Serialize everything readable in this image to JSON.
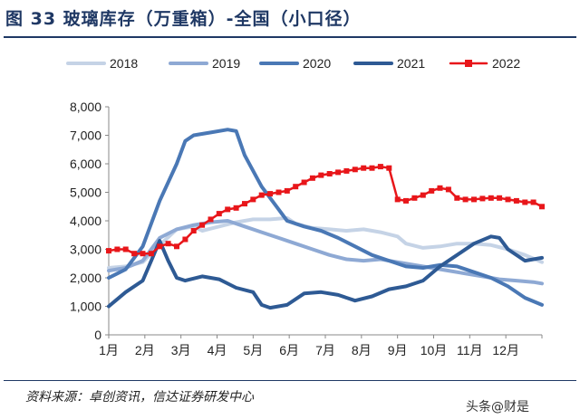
{
  "title": "图 33 玻璃库存（万重箱）-全国（小口径）",
  "source": "资料来源：卓创资讯，信达证券研发中心",
  "watermark": "头条@财是",
  "chart_data": {
    "type": "line",
    "ylim": [
      0,
      8000
    ],
    "y_ticks": [
      "0",
      "1,000",
      "2,000",
      "3,000",
      "4,000",
      "5,000",
      "6,000",
      "7,000",
      "8,000"
    ],
    "x_ticks": [
      "1月",
      "2月",
      "3月",
      "4月",
      "5月",
      "6月",
      "7月",
      "8月",
      "9月",
      "10月",
      "11月",
      "12月"
    ],
    "x_unit": "week",
    "x_range": [
      1,
      52
    ],
    "grid": false,
    "legend_position": "top",
    "series": [
      {
        "name": "2018",
        "color": "#c5d3e6",
        "marker": false,
        "points": [
          [
            1,
            2350
          ],
          [
            3,
            2400
          ],
          [
            5,
            2550
          ],
          [
            7,
            3150
          ],
          [
            9,
            3700
          ],
          [
            11,
            3800
          ],
          [
            12,
            3650
          ],
          [
            14,
            3800
          ],
          [
            16,
            3950
          ],
          [
            18,
            4050
          ],
          [
            20,
            4050
          ],
          [
            22,
            4100
          ],
          [
            23,
            3900
          ],
          [
            25,
            3750
          ],
          [
            27,
            3700
          ],
          [
            29,
            3650
          ],
          [
            31,
            3700
          ],
          [
            33,
            3600
          ],
          [
            35,
            3450
          ],
          [
            36,
            3200
          ],
          [
            38,
            3050
          ],
          [
            40,
            3100
          ],
          [
            42,
            3200
          ],
          [
            44,
            3200
          ],
          [
            46,
            3150
          ],
          [
            48,
            3000
          ],
          [
            50,
            2800
          ],
          [
            52,
            2550
          ]
        ]
      },
      {
        "name": "2019",
        "color": "#8ea9d4",
        "marker": false,
        "points": [
          [
            1,
            2250
          ],
          [
            3,
            2350
          ],
          [
            5,
            2600
          ],
          [
            7,
            3400
          ],
          [
            9,
            3700
          ],
          [
            11,
            3850
          ],
          [
            13,
            3950
          ],
          [
            15,
            4000
          ],
          [
            17,
            3800
          ],
          [
            19,
            3600
          ],
          [
            21,
            3400
          ],
          [
            23,
            3200
          ],
          [
            25,
            3000
          ],
          [
            27,
            2800
          ],
          [
            29,
            2650
          ],
          [
            31,
            2600
          ],
          [
            33,
            2650
          ],
          [
            35,
            2550
          ],
          [
            37,
            2450
          ],
          [
            39,
            2350
          ],
          [
            41,
            2250
          ],
          [
            43,
            2150
          ],
          [
            45,
            2050
          ],
          [
            47,
            1950
          ],
          [
            49,
            1900
          ],
          [
            51,
            1850
          ],
          [
            52,
            1800
          ]
        ]
      },
      {
        "name": "2020",
        "color": "#4a78b5",
        "marker": false,
        "points": [
          [
            1,
            2000
          ],
          [
            3,
            2300
          ],
          [
            5,
            3100
          ],
          [
            7,
            4700
          ],
          [
            9,
            6000
          ],
          [
            10,
            6800
          ],
          [
            11,
            7000
          ],
          [
            13,
            7100
          ],
          [
            15,
            7200
          ],
          [
            16,
            7150
          ],
          [
            17,
            6300
          ],
          [
            19,
            5200
          ],
          [
            21,
            4400
          ],
          [
            22,
            4000
          ],
          [
            24,
            3800
          ],
          [
            26,
            3650
          ],
          [
            28,
            3400
          ],
          [
            30,
            3100
          ],
          [
            32,
            2800
          ],
          [
            34,
            2600
          ],
          [
            36,
            2400
          ],
          [
            38,
            2350
          ],
          [
            40,
            2450
          ],
          [
            42,
            2400
          ],
          [
            44,
            2200
          ],
          [
            46,
            2000
          ],
          [
            48,
            1700
          ],
          [
            50,
            1300
          ],
          [
            52,
            1050
          ]
        ]
      },
      {
        "name": "2021",
        "color": "#2e5a94",
        "marker": false,
        "points": [
          [
            1,
            1000
          ],
          [
            3,
            1500
          ],
          [
            5,
            1900
          ],
          [
            6,
            2600
          ],
          [
            7,
            3300
          ],
          [
            8,
            2600
          ],
          [
            9,
            2000
          ],
          [
            10,
            1900
          ],
          [
            12,
            2050
          ],
          [
            14,
            1950
          ],
          [
            16,
            1650
          ],
          [
            18,
            1500
          ],
          [
            19,
            1050
          ],
          [
            20,
            950
          ],
          [
            22,
            1050
          ],
          [
            24,
            1450
          ],
          [
            26,
            1500
          ],
          [
            28,
            1400
          ],
          [
            30,
            1200
          ],
          [
            32,
            1350
          ],
          [
            34,
            1600
          ],
          [
            36,
            1700
          ],
          [
            38,
            1900
          ],
          [
            40,
            2400
          ],
          [
            42,
            2800
          ],
          [
            44,
            3200
          ],
          [
            46,
            3450
          ],
          [
            47,
            3400
          ],
          [
            48,
            3000
          ],
          [
            50,
            2600
          ],
          [
            52,
            2700
          ]
        ]
      },
      {
        "name": "2022",
        "color": "#e8161a",
        "marker": true,
        "points": [
          [
            1,
            2950
          ],
          [
            2,
            3000
          ],
          [
            3,
            3000
          ],
          [
            4,
            2850
          ],
          [
            5,
            2850
          ],
          [
            6,
            2850
          ],
          [
            7,
            3100
          ],
          [
            8,
            3200
          ],
          [
            9,
            3100
          ],
          [
            10,
            3350
          ],
          [
            11,
            3650
          ],
          [
            12,
            3850
          ],
          [
            13,
            4050
          ],
          [
            14,
            4250
          ],
          [
            15,
            4400
          ],
          [
            16,
            4450
          ],
          [
            17,
            4600
          ],
          [
            18,
            4750
          ],
          [
            19,
            4900
          ],
          [
            20,
            4950
          ],
          [
            21,
            5000
          ],
          [
            22,
            5050
          ],
          [
            23,
            5200
          ],
          [
            24,
            5350
          ],
          [
            25,
            5500
          ],
          [
            26,
            5600
          ],
          [
            27,
            5650
          ],
          [
            28,
            5700
          ],
          [
            29,
            5750
          ],
          [
            30,
            5800
          ],
          [
            31,
            5850
          ],
          [
            32,
            5850
          ],
          [
            33,
            5900
          ],
          [
            34,
            5850
          ],
          [
            35,
            4750
          ],
          [
            36,
            4700
          ],
          [
            37,
            4800
          ],
          [
            38,
            4900
          ],
          [
            39,
            5050
          ],
          [
            40,
            5150
          ],
          [
            41,
            5100
          ],
          [
            42,
            4800
          ],
          [
            43,
            4750
          ],
          [
            44,
            4750
          ],
          [
            45,
            4780
          ],
          [
            46,
            4800
          ],
          [
            47,
            4800
          ],
          [
            48,
            4750
          ],
          [
            49,
            4700
          ],
          [
            50,
            4650
          ],
          [
            51,
            4650
          ],
          [
            52,
            4500
          ]
        ]
      }
    ]
  }
}
